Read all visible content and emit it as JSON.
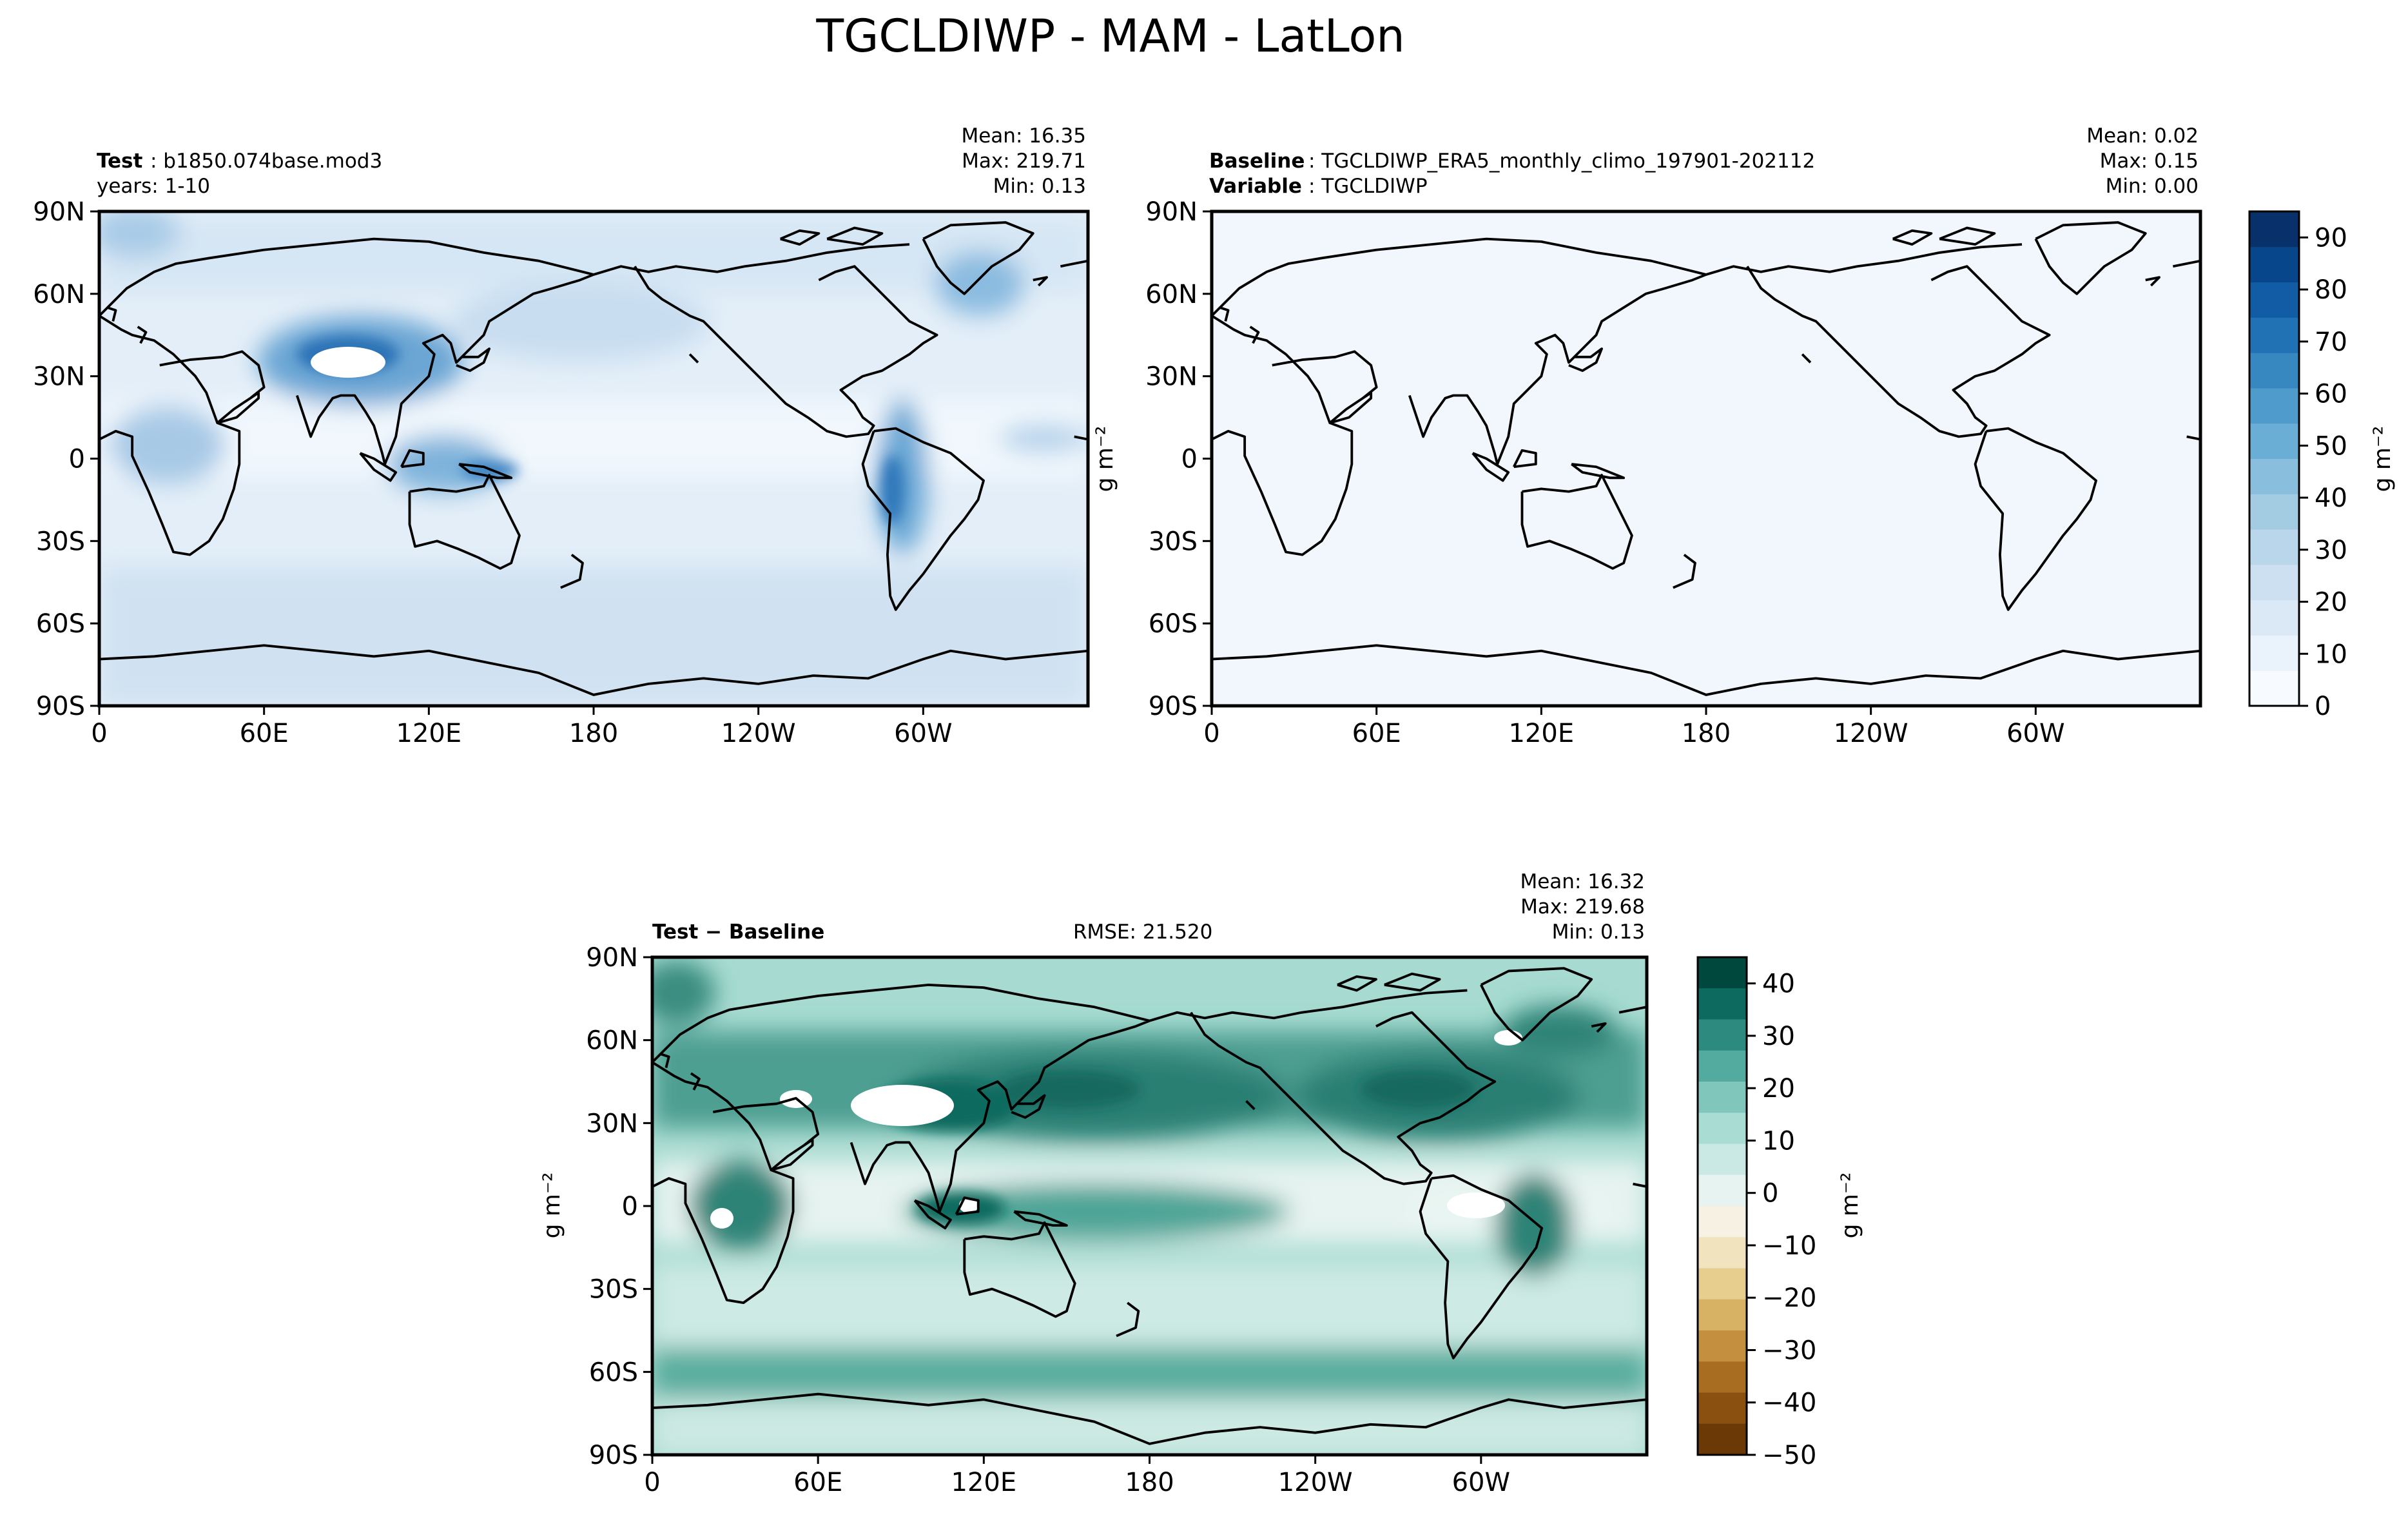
{
  "figure": {
    "title": "TGCLDIWP - MAM - LatLon"
  },
  "axis_ticks": {
    "lon": [
      "0",
      "60E",
      "120E",
      "180",
      "120W",
      "60W"
    ],
    "lat": [
      "90N",
      "60N",
      "30N",
      "0",
      "30S",
      "60S",
      "90S"
    ]
  },
  "panels": {
    "test": {
      "label_bold": "Test",
      "label_text": ": b1850.074base.mod3",
      "line2": "years: 1-10",
      "stats": {
        "mean": "Mean: 16.35",
        "max": "Max: 219.71",
        "min": "Min:  0.13"
      }
    },
    "baseline": {
      "label_bold": "Baseline",
      "label_text": ": TGCLDIWP_ERA5_monthly_climo_197901-202112",
      "line2_bold": "Variable",
      "line2_text": ": TGCLDIWP",
      "stats": {
        "mean": "Mean:  0.02",
        "max": "Max:  0.15",
        "min": "Min:  0.00"
      }
    },
    "diff": {
      "label_bold": "Test − Baseline",
      "rmse": "RMSE: 21.520",
      "stats": {
        "mean": "Mean: 16.32",
        "max": "Max: 219.68",
        "min": "Min:  0.13"
      },
      "left_unit": "g m⁻²"
    }
  },
  "colorbars": {
    "main": {
      "unit": "g m⁻²",
      "ticks": [
        "0",
        "10",
        "20",
        "30",
        "40",
        "50",
        "60",
        "70",
        "80",
        "90"
      ],
      "colors": [
        "#f7fbff",
        "#eaf2fb",
        "#dbe9f6",
        "#cde0f1",
        "#bad6eb",
        "#a3cce3",
        "#89bedc",
        "#6aaed6",
        "#4f9bcb",
        "#3787c0",
        "#2171b5",
        "#115ca5",
        "#08468b",
        "#08306b"
      ]
    },
    "diff": {
      "unit": "g m⁻²",
      "ticks": [
        "40",
        "30",
        "20",
        "10",
        "0",
        "−10",
        "−20",
        "−30",
        "−40",
        "−50"
      ],
      "colors": [
        "#00483d",
        "#0d6a5f",
        "#2d8a7f",
        "#53ab9f",
        "#80c6bb",
        "#a9dcd2",
        "#cbe9e4",
        "#e6f3f0",
        "#f6f1e2",
        "#f1e3bd",
        "#e7cd8e",
        "#d8b264",
        "#c48f3f",
        "#a96d21",
        "#8a5010",
        "#6b3906"
      ]
    }
  },
  "chart_data": [
    {
      "type": "heatmap",
      "title": "Test: b1850.074base.mod3",
      "xlabel": "",
      "ylabel": "",
      "x_ticks": [
        "0",
        "60E",
        "120E",
        "180",
        "120W",
        "60W"
      ],
      "y_ticks": [
        "90N",
        "60N",
        "30N",
        "0",
        "30S",
        "60S",
        "90S"
      ],
      "xlim": [
        0,
        360
      ],
      "ylim": [
        -90,
        90
      ],
      "stats": {
        "mean": 16.35,
        "max": 219.71,
        "min": 0.13
      },
      "colorbar_range": [
        0,
        95
      ],
      "features": [
        {
          "name": "tibetan-plateau-max",
          "lon": 95,
          "lat": 33,
          "value": 90
        },
        {
          "name": "andes-max",
          "lon": 290,
          "lat": -10,
          "value": 75
        },
        {
          "name": "maritime-continent",
          "lon": 120,
          "lat": 0,
          "value": 55
        },
        {
          "name": "north-atlantic",
          "lon": 320,
          "lat": 60,
          "value": 40
        },
        {
          "name": "southern-ocean",
          "lon": 180,
          "lat": -55,
          "value": 18
        }
      ]
    },
    {
      "type": "heatmap",
      "title": "Baseline: TGCLDIWP_ERA5_monthly_climo_197901-202112",
      "x_ticks": [
        "0",
        "60E",
        "120E",
        "180",
        "120W",
        "60W"
      ],
      "y_ticks": [
        "90N",
        "60N",
        "30N",
        "0",
        "30S",
        "60S",
        "90S"
      ],
      "xlim": [
        0,
        360
      ],
      "ylim": [
        -90,
        90
      ],
      "stats": {
        "mean": 0.02,
        "max": 0.15,
        "min": 0.0
      },
      "colorbar_range": [
        0,
        95
      ],
      "features": []
    },
    {
      "type": "heatmap",
      "title": "Test − Baseline",
      "x_ticks": [
        "0",
        "60E",
        "120E",
        "180",
        "120W",
        "60W"
      ],
      "y_ticks": [
        "90N",
        "60N",
        "30N",
        "0",
        "30S",
        "60S",
        "90S"
      ],
      "xlim": [
        0,
        360
      ],
      "ylim": [
        -90,
        90
      ],
      "stats": {
        "mean": 16.32,
        "max": 219.68,
        "min": 0.13,
        "rmse": 21.52
      },
      "colorbar_range": [
        -50,
        45
      ],
      "features": [
        {
          "name": "tibetan-plateau",
          "lon": 95,
          "lat": 35,
          "value": 45
        },
        {
          "name": "north-pacific-stormtrack",
          "lon": 170,
          "lat": 40,
          "value": 35
        },
        {
          "name": "north-atlantic-stormtrack",
          "lon": 300,
          "lat": 40,
          "value": 35
        },
        {
          "name": "itcz",
          "lon": 200,
          "lat": 5,
          "value": 25
        },
        {
          "name": "southern-ocean",
          "lon": 180,
          "lat": -55,
          "value": 20
        }
      ]
    }
  ]
}
